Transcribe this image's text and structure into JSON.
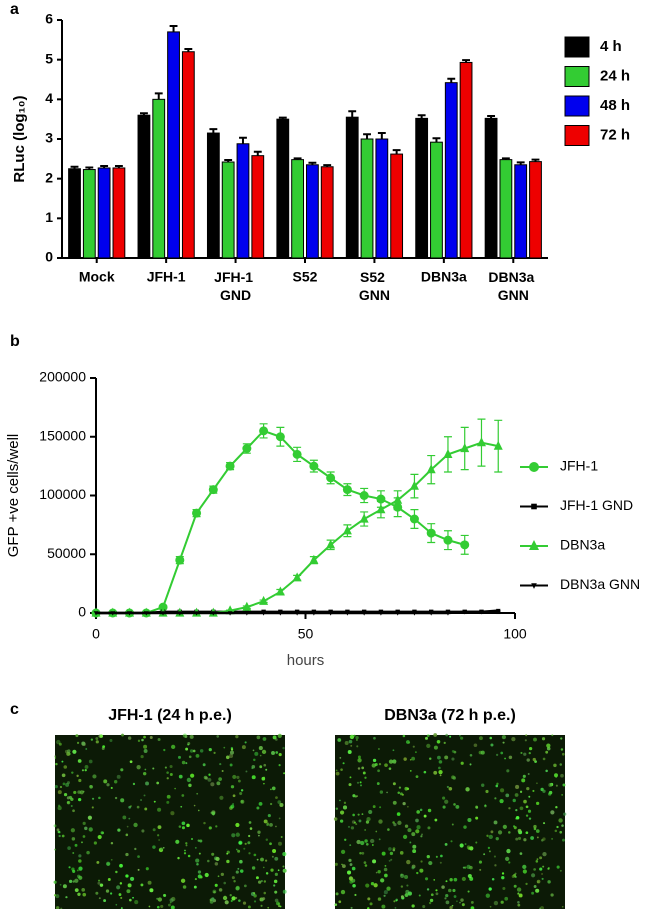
{
  "panel_labels": [
    "a",
    "b",
    "c"
  ],
  "chart_data": [
    {
      "type": "bar",
      "y_label": "RLuc (log₁₀)",
      "categories": [
        "Mock",
        "JFH-1",
        "JFH-1 GND",
        "S52",
        "S52 GNN",
        "DBN3a",
        "DBN3a GNN"
      ],
      "series": [
        {
          "name": "4 h",
          "color": "#000000",
          "values": [
            2.25,
            3.6,
            3.15,
            3.5,
            3.55,
            3.52,
            3.52
          ],
          "errors": [
            0.05,
            0.05,
            0.1,
            0.04,
            0.15,
            0.08,
            0.06
          ]
        },
        {
          "name": "24 h",
          "color": "#33cc33",
          "values": [
            2.23,
            4.0,
            2.42,
            2.48,
            3.0,
            2.92,
            2.48
          ],
          "errors": [
            0.05,
            0.15,
            0.05,
            0.03,
            0.12,
            0.1,
            0.03
          ]
        },
        {
          "name": "48 h",
          "color": "#0000ee",
          "values": [
            2.27,
            5.7,
            2.88,
            2.35,
            3.0,
            4.42,
            2.35
          ],
          "errors": [
            0.05,
            0.15,
            0.15,
            0.05,
            0.15,
            0.1,
            0.06
          ]
        },
        {
          "name": "72 h",
          "color": "#ee0000",
          "values": [
            2.27,
            5.2,
            2.58,
            2.3,
            2.62,
            4.93,
            2.43
          ],
          "errors": [
            0.05,
            0.07,
            0.1,
            0.04,
            0.1,
            0.06,
            0.05
          ]
        }
      ],
      "ylim": [
        0,
        6
      ],
      "yticks": [
        0,
        1,
        2,
        3,
        4,
        5,
        6
      ]
    },
    {
      "type": "line",
      "x_label": "hours",
      "y_label": "GFP +ve  cells/well",
      "x": [
        0,
        4,
        8,
        12,
        16,
        20,
        24,
        28,
        32,
        36,
        40,
        44,
        48,
        52,
        56,
        60,
        64,
        68,
        72,
        76,
        80,
        84,
        88,
        92,
        96
      ],
      "series": [
        {
          "name": "JFH-1",
          "color": "#33cc33",
          "marker": "circle",
          "values": [
            0,
            0,
            0,
            0,
            5000,
            45000,
            85000,
            105000,
            125000,
            140000,
            155000,
            150000,
            135000,
            125000,
            115000,
            105000,
            100000,
            97000,
            90000,
            80000,
            68000,
            62000,
            58000,
            null,
            null
          ],
          "errors": [
            0,
            0,
            0,
            0,
            1000,
            3000,
            3000,
            3000,
            3000,
            4000,
            6000,
            8000,
            6000,
            5000,
            5000,
            5000,
            6000,
            7000,
            8000,
            8000,
            8000,
            8000,
            8000,
            null,
            null
          ]
        },
        {
          "name": "JFH-1 GND",
          "color": "#000000",
          "marker": "square",
          "values": [
            0,
            0,
            0,
            0,
            1000,
            1000,
            1000,
            1000,
            1000,
            1000,
            1000,
            1000,
            1000,
            1000,
            1000,
            1000,
            1000,
            1000,
            1000,
            1000,
            1000,
            1000,
            1000,
            1000,
            1000
          ]
        },
        {
          "name": "DBN3a",
          "color": "#33cc33",
          "marker": "triangle",
          "values": [
            0,
            0,
            0,
            0,
            0,
            0,
            0,
            0,
            2000,
            5000,
            10000,
            18000,
            30000,
            45000,
            58000,
            70000,
            80000,
            88000,
            96000,
            108000,
            122000,
            135000,
            140000,
            145000,
            142000
          ],
          "errors": [
            0,
            0,
            0,
            0,
            0,
            0,
            0,
            0,
            500,
            1000,
            1000,
            2000,
            2000,
            3000,
            4000,
            5000,
            6000,
            7000,
            8000,
            10000,
            12000,
            15000,
            18000,
            20000,
            22000
          ]
        },
        {
          "name": "DBN3a GNN",
          "color": "#000000",
          "marker": "triangle-down",
          "values": [
            0,
            0,
            0,
            0,
            0,
            0,
            0,
            0,
            0,
            0,
            0,
            0,
            0,
            0,
            0,
            0,
            0,
            0,
            0,
            0,
            0,
            0,
            1000,
            1000,
            2000
          ]
        }
      ],
      "xlim": [
        0,
        100
      ],
      "xticks": [
        0,
        50,
        100
      ],
      "ylim": [
        0,
        200000
      ],
      "yticks": [
        0,
        50000,
        100000,
        150000,
        200000
      ]
    }
  ],
  "images": [
    {
      "title": "JFH-1 (24 h p.e.)"
    },
    {
      "title": "DBN3a (72 h p.e.)"
    }
  ]
}
